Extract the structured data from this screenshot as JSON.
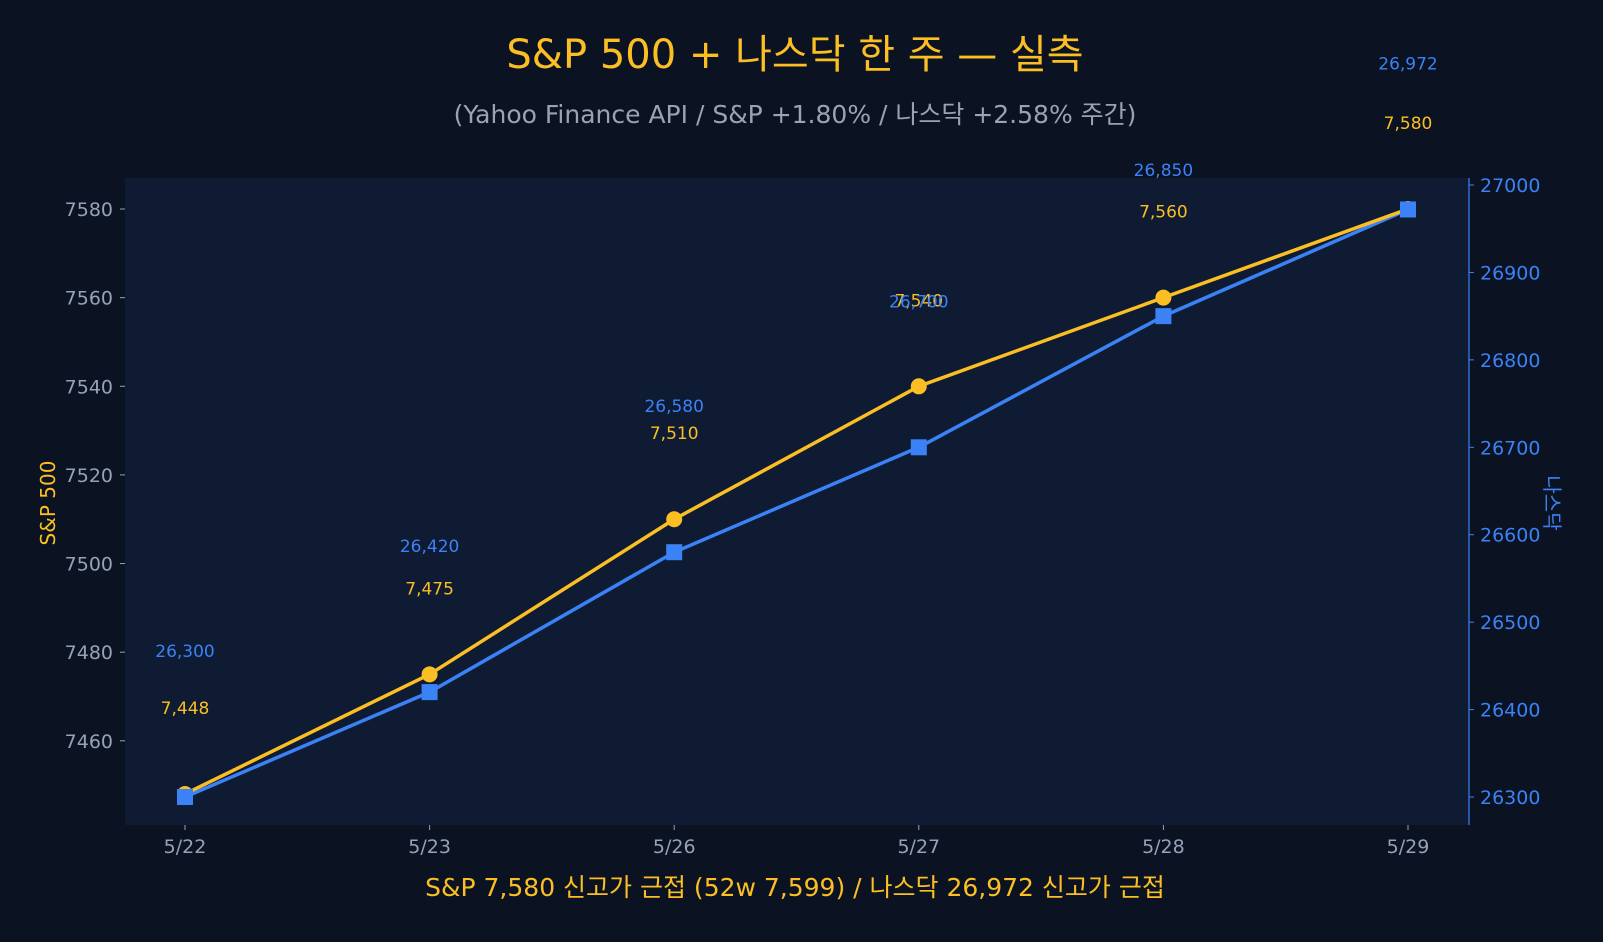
{
  "colors": {
    "background": "#0b1222",
    "plot_background": "#0f1b33",
    "sp_line": "#fbbf24",
    "nasdaq_line": "#3b82f6",
    "title": "#fbbf24",
    "subtitle": "#9ca3af",
    "tick_text": "#94a3b8"
  },
  "chart_data": {
    "type": "line",
    "title": "S&P 500 + 나스닥 한 주 — 실측",
    "subtitle": "(Yahoo Finance API / S&P +1.80% / 나스닥 +2.58% 주간)",
    "xlabel": "S&P 7,580 신고가 근접 (52w 7,599) / 나스닥 26,972 신고가 근접",
    "ylabel_left": "S&P 500",
    "ylabel_right": "나스닥",
    "categories": [
      "5/22",
      "5/23",
      "5/26",
      "5/27",
      "5/28",
      "5/29"
    ],
    "series": [
      {
        "name": "S&P 500",
        "axis": "left",
        "marker": "circle",
        "values": [
          7448,
          7475,
          7510,
          7540,
          7560,
          7580
        ],
        "labels": [
          "7,448",
          "7,475",
          "7,510",
          "7,540",
          "7,560",
          "7,580"
        ]
      },
      {
        "name": "나스닥",
        "axis": "right",
        "marker": "square",
        "values": [
          26300,
          26420,
          26580,
          26700,
          26850,
          26972
        ],
        "labels": [
          "26,300",
          "26,420",
          "26,580",
          "26,700",
          "26,850",
          "26,972"
        ]
      }
    ],
    "ylim_left": [
      7441,
      7587
    ],
    "ylim_right": [
      26268,
      27008
    ],
    "yticks_left": [
      7460,
      7480,
      7500,
      7520,
      7540,
      7560,
      7580
    ],
    "yticks_right": [
      26300,
      26400,
      26500,
      26600,
      26700,
      26800,
      26900,
      27000
    ],
    "grid": false,
    "legend": "none"
  }
}
